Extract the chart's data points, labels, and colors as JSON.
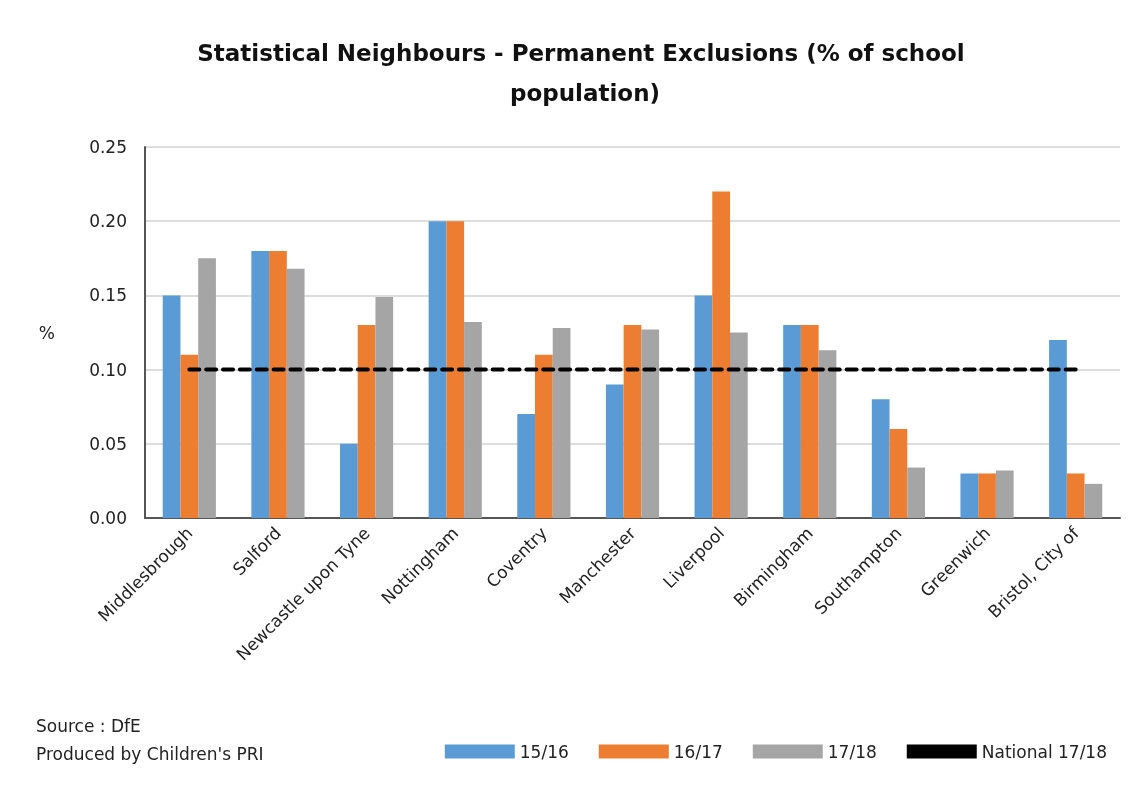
{
  "chart_data": {
    "type": "bar",
    "title": "Statistical Neighbours - Permanent Exclusions (% of school population)",
    "ylabel": "%",
    "categories": [
      "Middlesbrough",
      "Salford",
      "Newcastle upon Tyne",
      "Nottingham",
      "Coventry",
      "Manchester",
      "Liverpool",
      "Birmingham",
      "Southampton",
      "Greenwich",
      "Bristol, City of"
    ],
    "series": [
      {
        "name": "15/16",
        "color": "#5b9bd5",
        "values": [
          0.15,
          0.18,
          0.05,
          0.2,
          0.07,
          0.09,
          0.15,
          0.13,
          0.08,
          0.03,
          0.12
        ]
      },
      {
        "name": "16/17",
        "color": "#ed7d31",
        "values": [
          0.11,
          0.18,
          0.13,
          0.2,
          0.11,
          0.13,
          0.22,
          0.13,
          0.06,
          0.03,
          0.03
        ]
      },
      {
        "name": "17/18",
        "color": "#a5a5a5",
        "values": [
          0.175,
          0.168,
          0.149,
          0.132,
          0.128,
          0.127,
          0.125,
          0.113,
          0.034,
          0.032,
          0.023
        ]
      },
      {
        "name": "National 17/18",
        "type": "line",
        "color": "#000000",
        "line_style": "dashed",
        "marker": "none",
        "values": [
          0.1,
          0.1,
          0.1,
          0.1,
          0.1,
          0.1,
          0.1,
          0.1,
          0.1,
          0.1,
          0.1
        ]
      }
    ],
    "ylim": [
      0,
      0.25
    ],
    "yticks": [
      {
        "value": 0,
        "label": "0.00"
      },
      {
        "value": 0.05,
        "label": "0.05"
      },
      {
        "value": 0.1,
        "label": "0.10"
      },
      {
        "value": 0.15,
        "label": "0.15"
      },
      {
        "value": 0.2,
        "label": "0.20"
      },
      {
        "value": 0.25,
        "label": "0.25"
      }
    ],
    "grid": "y",
    "legend": "bottom right",
    "annotations": [
      "Source : DfE",
      "Produced by Children's PRI"
    ]
  }
}
